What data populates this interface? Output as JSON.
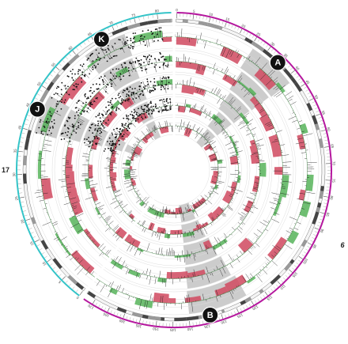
{
  "figure": {
    "colors": {
      "accent_chr6": "#b5179e",
      "accent_chr17": "#34c4c8",
      "ideogram": "#555555",
      "loss": "#d0495f",
      "gain": "#4caf50",
      "points": "#111111",
      "highlight": "#bbbbbb",
      "grid": "#dddddd",
      "marker_fill": "#111111",
      "marker_text": "#ffffff"
    },
    "chromosomes": [
      {
        "id": "chr6",
        "label": "6",
        "start_deg": 0,
        "end_deg": 216
      },
      {
        "id": "chr17",
        "label": "17",
        "start_deg": 216,
        "end_deg": 360
      }
    ],
    "markers": [
      {
        "id": "A",
        "label": "A",
        "angle": 44
      },
      {
        "id": "B",
        "label": "B",
        "angle": 166
      },
      {
        "id": "J",
        "label": "J",
        "angle": 294
      },
      {
        "id": "K",
        "label": "K",
        "angle": 331
      }
    ],
    "highlight_regions": [
      {
        "region": "A",
        "start_deg": 33,
        "end_deg": 53
      },
      {
        "region": "B",
        "start_deg": 150,
        "end_deg": 174
      },
      {
        "region": "J",
        "start_deg": 285,
        "end_deg": 301
      },
      {
        "region": "K",
        "start_deg": 322,
        "end_deg": 340
      }
    ],
    "track_count": 5,
    "chr6_ticks": [
      "0",
      "5",
      "10",
      "15",
      "20",
      "25",
      "30",
      "35",
      "40",
      "45",
      "50",
      "55",
      "60",
      "65",
      "70",
      "75",
      "80",
      "85",
      "90",
      "95",
      "100",
      "105",
      "110",
      "115",
      "120",
      "125",
      "130",
      "135",
      "140",
      "145",
      "150",
      "155",
      "160",
      "165",
      "170"
    ],
    "chr17_ticks": [
      "0",
      "5",
      "10",
      "15",
      "20",
      "25",
      "30",
      "35",
      "40",
      "45",
      "50",
      "55",
      "60",
      "65",
      "70",
      "75",
      "80"
    ]
  }
}
